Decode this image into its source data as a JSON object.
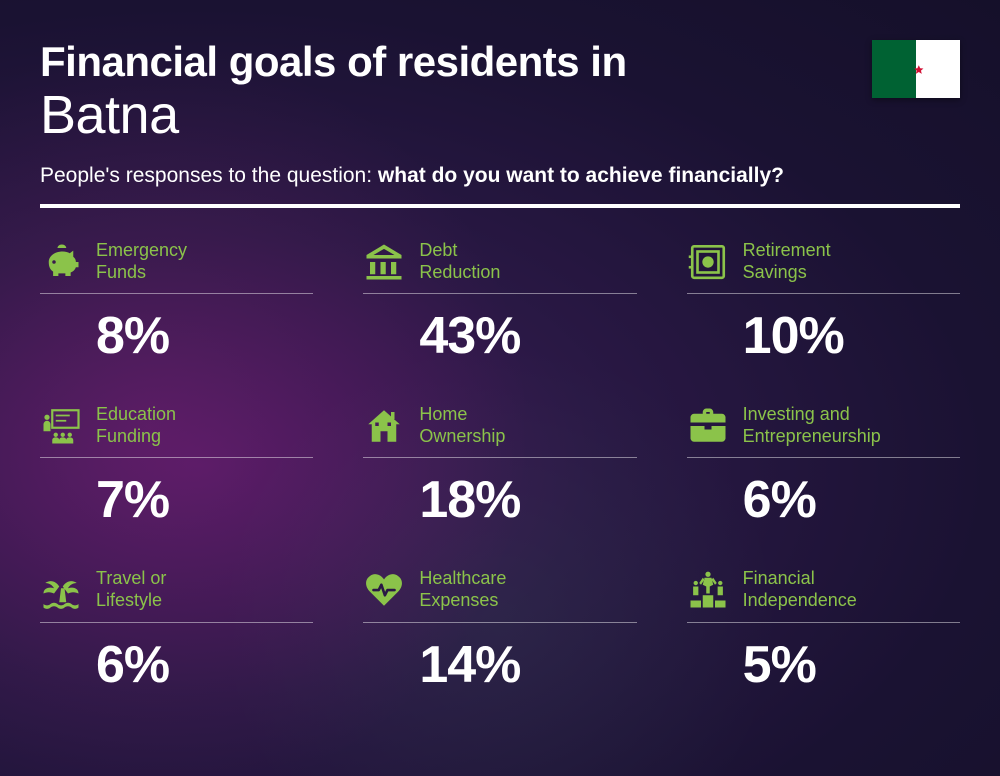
{
  "header": {
    "title_line1": "Financial goals of residents in",
    "title_line2": "Batna",
    "subtitle_prefix": "People's responses to the question: ",
    "subtitle_bold": "what do you want to achieve financially?"
  },
  "flag": {
    "left_color": "#006233",
    "right_color": "#ffffff",
    "emblem_color": "#d21034"
  },
  "styling": {
    "accent_color": "#8bc34a",
    "text_color": "#ffffff",
    "value_fontsize": 52,
    "label_fontsize": 18,
    "title1_fontsize": 42,
    "title2_fontsize": 54
  },
  "items": [
    {
      "label": "Emergency Funds",
      "value": "8%",
      "icon": "piggy-bank"
    },
    {
      "label": "Debt Reduction",
      "value": "43%",
      "icon": "bank"
    },
    {
      "label": "Retirement Savings",
      "value": "10%",
      "icon": "safe"
    },
    {
      "label": "Education Funding",
      "value": "7%",
      "icon": "education"
    },
    {
      "label": "Home Ownership",
      "value": "18%",
      "icon": "house"
    },
    {
      "label": "Investing and Entrepreneurship",
      "value": "6%",
      "icon": "briefcase"
    },
    {
      "label": "Travel or Lifestyle",
      "value": "6%",
      "icon": "palm"
    },
    {
      "label": "Healthcare Expenses",
      "value": "14%",
      "icon": "heart"
    },
    {
      "label": "Financial Independence",
      "value": "5%",
      "icon": "podium"
    }
  ]
}
